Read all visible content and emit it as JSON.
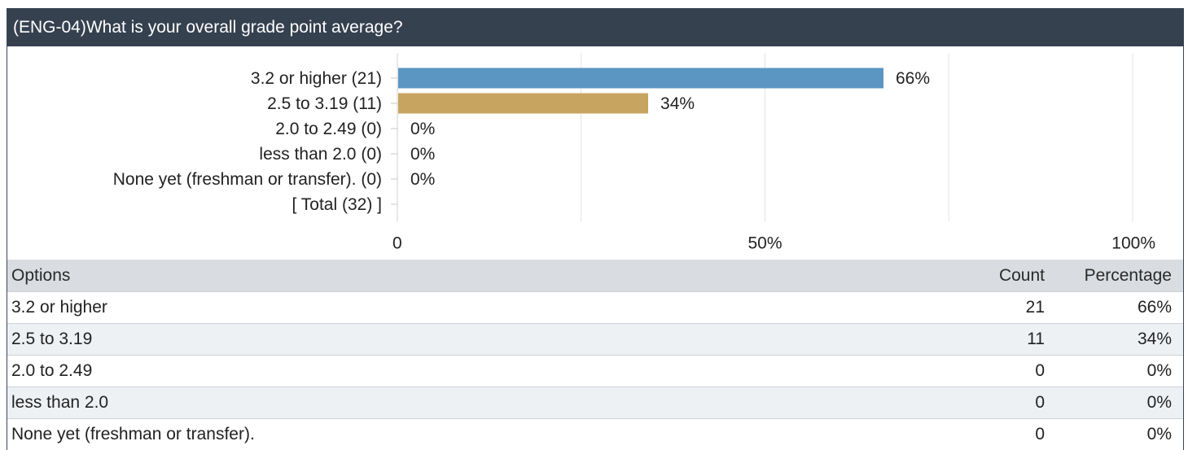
{
  "header": {
    "title": "(ENG-04)What is your overall grade point average?"
  },
  "colors": {
    "header_bg": "#36414f",
    "series": [
      "#5b95c2",
      "#c8a461",
      "#5b95c2",
      "#5b95c2",
      "#5b95c2"
    ]
  },
  "chart_data": {
    "type": "bar",
    "orientation": "horizontal",
    "categories": [
      "3.2 or higher (21)",
      "2.5 to 3.19 (11)",
      "2.0 to 2.49 (0)",
      "less than 2.0 (0)",
      "None yet (freshman or transfer). (0)",
      "[ Total (32) ]"
    ],
    "values": [
      66,
      34,
      0,
      0,
      0,
      null
    ],
    "value_labels": [
      "66%",
      "34%",
      "0%",
      "0%",
      "0%",
      ""
    ],
    "xlim": [
      0,
      100
    ],
    "xticks": [
      {
        "value": 0,
        "label": "0"
      },
      {
        "value": 50,
        "label": "50%"
      },
      {
        "value": 100,
        "label": "100%"
      }
    ],
    "grid_values": [
      25,
      50,
      75,
      100
    ],
    "grid": true
  },
  "table": {
    "headers": {
      "option": "Options",
      "count": "Count",
      "percentage": "Percentage"
    },
    "rows": [
      {
        "option": "3.2 or higher",
        "count": "21",
        "percentage": "66%"
      },
      {
        "option": "2.5 to 3.19",
        "count": "11",
        "percentage": "34%"
      },
      {
        "option": "2.0 to 2.49",
        "count": "0",
        "percentage": "0%"
      },
      {
        "option": "less than 2.0",
        "count": "0",
        "percentage": "0%"
      },
      {
        "option": "None yet (freshman or transfer).",
        "count": "0",
        "percentage": "0%"
      }
    ]
  }
}
